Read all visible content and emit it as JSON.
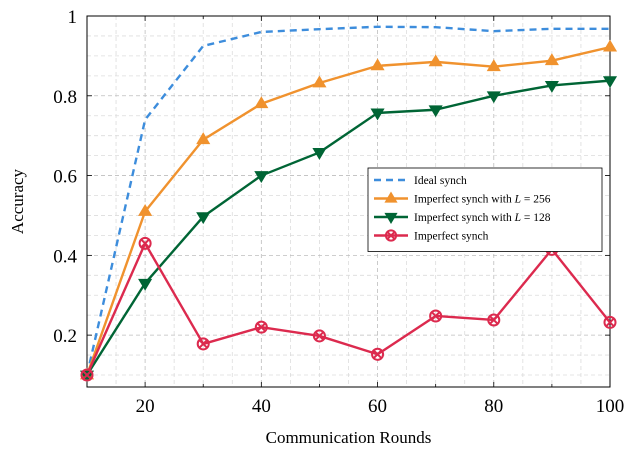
{
  "chart_data": {
    "type": "line",
    "xlabel": "Communication Rounds",
    "ylabel": "Accuracy",
    "xlim": [
      10,
      100
    ],
    "ylim": [
      0.07,
      1.0
    ],
    "xticks": [
      20,
      40,
      60,
      80,
      100
    ],
    "yticks": [
      0.2,
      0.4,
      0.6,
      0.8,
      1
    ],
    "ytick_labels": [
      "0.2",
      "0.4",
      "0.6",
      "0.8",
      "1"
    ],
    "xtick_labels": [
      "20",
      "40",
      "60",
      "80",
      "100"
    ],
    "grid": true,
    "legend_position": "center-right",
    "x": [
      10,
      20,
      30,
      40,
      50,
      60,
      70,
      80,
      90,
      100
    ],
    "series": [
      {
        "name": "Ideal synch",
        "color": "#3d8ddc",
        "dash": true,
        "marker": "none",
        "values": [
          0.1,
          0.74,
          0.925,
          0.96,
          0.967,
          0.973,
          0.972,
          0.962,
          0.968,
          0.968
        ]
      },
      {
        "name": "Imperfect synch with L = 256",
        "name_prefix": "Imperfect synch with ",
        "name_var": "L",
        "name_suffix": " = 256",
        "color": "#f0922e",
        "marker": "triangle-up",
        "values": [
          0.1,
          0.51,
          0.69,
          0.78,
          0.832,
          0.875,
          0.885,
          0.873,
          0.888,
          0.922
        ]
      },
      {
        "name": "Imperfect synch with L = 128",
        "name_prefix": "Imperfect synch with ",
        "name_var": "L",
        "name_suffix": " = 128",
        "color": "#006535",
        "marker": "triangle-down",
        "values": [
          0.1,
          0.33,
          0.497,
          0.6,
          0.658,
          0.757,
          0.765,
          0.8,
          0.826,
          0.838
        ]
      },
      {
        "name": "Imperfect synch",
        "color": "#dc2a4e",
        "marker": "otimes",
        "values": [
          0.1,
          0.43,
          0.178,
          0.22,
          0.198,
          0.152,
          0.248,
          0.238,
          0.415,
          0.232
        ]
      }
    ]
  }
}
